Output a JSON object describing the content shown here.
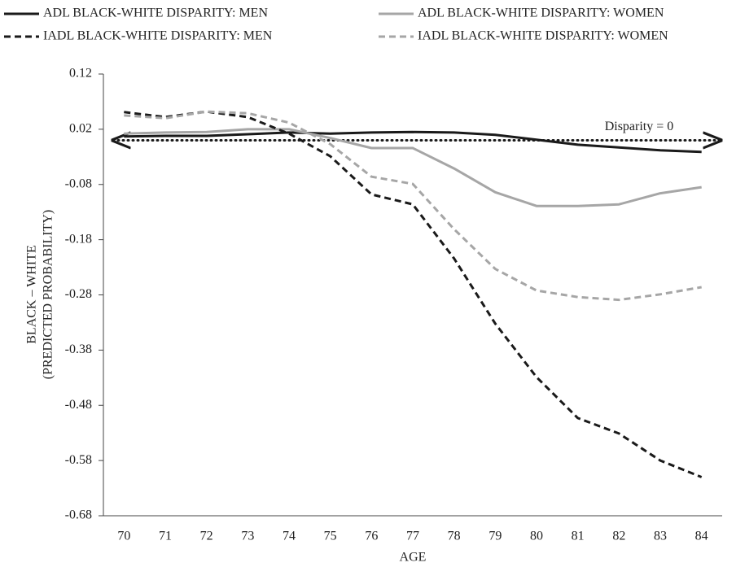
{
  "chart_data": {
    "type": "line",
    "x_label": "AGE",
    "y_label": [
      "BLACK – WHITE",
      "(PREDICTED PROBABILITY)"
    ],
    "categories": [
      "70",
      "71",
      "72",
      "73",
      "74",
      "75",
      "76",
      "77",
      "78",
      "79",
      "80",
      "81",
      "82",
      "83",
      "84"
    ],
    "series": [
      {
        "name": "ADL BLACK-WHITE DISPARITY: MEN",
        "color": "#1a1a1a",
        "line_style": "solid",
        "values": [
          0.007,
          0.008,
          0.008,
          0.011,
          0.014,
          0.012,
          0.014,
          0.015,
          0.014,
          0.01,
          0.001,
          -0.008,
          -0.013,
          -0.018,
          -0.021
        ]
      },
      {
        "name": "ADL BLACK-WHITE DISPARITY: WOMEN",
        "color": "#a6a6a6",
        "line_style": "solid",
        "values": [
          0.012,
          0.014,
          0.015,
          0.02,
          0.02,
          0.004,
          -0.014,
          -0.014,
          -0.051,
          -0.094,
          -0.119,
          -0.119,
          -0.116,
          -0.096,
          -0.085
        ]
      },
      {
        "name": "IADL BLACK-WHITE DISPARITY: MEN",
        "color": "#1a1a1a",
        "line_style": "dashed",
        "values": [
          0.051,
          0.042,
          0.052,
          0.042,
          0.012,
          -0.029,
          -0.098,
          -0.116,
          -0.214,
          -0.332,
          -0.429,
          -0.503,
          -0.531,
          -0.58,
          -0.61
        ]
      },
      {
        "name": "IADL BLACK-WHITE DISPARITY: WOMEN",
        "color": "#a6a6a6",
        "line_style": "dashed",
        "values": [
          0.045,
          0.04,
          0.052,
          0.049,
          0.032,
          -0.007,
          -0.066,
          -0.079,
          -0.161,
          -0.233,
          -0.272,
          -0.284,
          -0.289,
          -0.279,
          -0.266
        ]
      }
    ],
    "ylim": [
      -0.68,
      0.12
    ],
    "yticks": [
      0.12,
      0.02,
      -0.08,
      -0.18,
      -0.28,
      -0.38,
      -0.48,
      -0.58,
      -0.68
    ],
    "reference_line": {
      "value": 0,
      "label": "Disparity = 0",
      "color": "#1a1a1a"
    },
    "legend": "top",
    "grid": false
  }
}
